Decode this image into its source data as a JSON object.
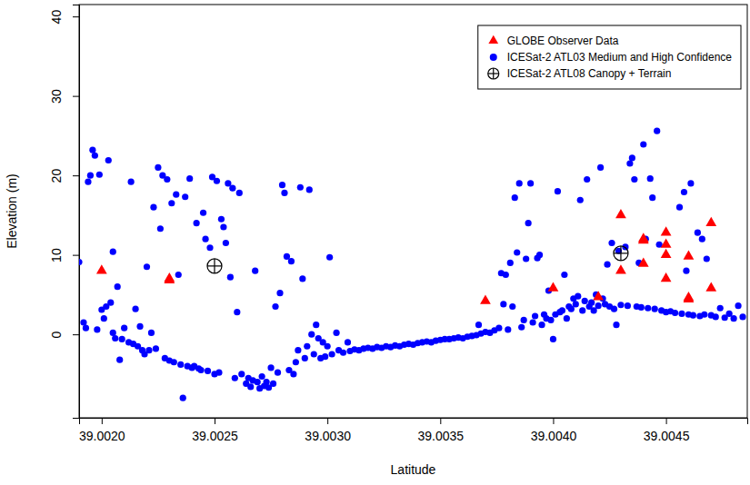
{
  "chart_data": {
    "type": "scatter",
    "x_label": "Latitude",
    "y_label": "Elevation (m)",
    "xlim": [
      39.0019,
      39.00486
    ],
    "ylim": [
      -10.5,
      41.5
    ],
    "xticks": [
      {
        "value": 39.002,
        "label": "39.0020"
      },
      {
        "value": 39.0025,
        "label": "39.0025"
      },
      {
        "value": 39.003,
        "label": "39.0030"
      },
      {
        "value": 39.0035,
        "label": "39.0035"
      },
      {
        "value": 39.004,
        "label": "39.0040"
      },
      {
        "value": 39.0045,
        "label": "39.0045"
      }
    ],
    "yticks": [
      0,
      10,
      20,
      30,
      40
    ],
    "grid": false,
    "legend": "top-right",
    "series": [
      {
        "name": "GLOBE Observer Data",
        "color": "#ff0000",
        "marker": "triangle",
        "x": [
          39.002,
          39.0023,
          39.0023,
          39.0037,
          39.004,
          39.0042,
          39.0043,
          39.0043,
          39.0044,
          39.0044,
          39.0044,
          39.0045,
          39.0045,
          39.0045,
          39.0045,
          39.0046,
          39.0046,
          39.0046,
          39.0047,
          39.0047
        ],
        "values": [
          8.0,
          7.0,
          6.8,
          4.2,
          5.8,
          4.7,
          15.0,
          8.0,
          12.0,
          11.8,
          8.9,
          12.8,
          11.3,
          10.0,
          7.0,
          9.8,
          4.6,
          4.4,
          14.0,
          5.8
        ]
      },
      {
        "name": "ICESat-2 ATL03 Medium and High Confidence",
        "color": "#0000ff",
        "marker": "circle",
        "x": [
          39.0019,
          39.00192,
          39.00193,
          39.00194,
          39.00195,
          39.00196,
          39.00197,
          39.00198,
          39.00199,
          39.002,
          39.00201,
          39.00202,
          39.00203,
          39.00204,
          39.00205,
          39.00205,
          39.00206,
          39.00207,
          39.00208,
          39.00209,
          39.0021,
          39.00212,
          39.00213,
          39.00214,
          39.00215,
          39.00216,
          39.00217,
          39.00218,
          39.00219,
          39.0022,
          39.00221,
          39.00222,
          39.00223,
          39.00224,
          39.00225,
          39.00226,
          39.00227,
          39.00228,
          39.00229,
          39.0023,
          39.00231,
          39.00232,
          39.00233,
          39.00234,
          39.00235,
          39.00236,
          39.00237,
          39.00238,
          39.00239,
          39.0024,
          39.00241,
          39.00242,
          39.00243,
          39.00244,
          39.00245,
          39.00246,
          39.00247,
          39.00248,
          39.00249,
          39.0025,
          39.00251,
          39.00252,
          39.00253,
          39.00254,
          39.00255,
          39.00256,
          39.00257,
          39.00258,
          39.00259,
          39.0026,
          39.00261,
          39.00262,
          39.00264,
          39.00265,
          39.00266,
          39.00267,
          39.00268,
          39.00269,
          39.0027,
          39.00271,
          39.00272,
          39.00273,
          39.00274,
          39.00275,
          39.00276,
          39.00277,
          39.00278,
          39.00279,
          39.0028,
          39.00281,
          39.00282,
          39.00283,
          39.00284,
          39.00285,
          39.00286,
          39.00287,
          39.00288,
          39.00289,
          39.0029,
          39.00291,
          39.00292,
          39.00293,
          39.00294,
          39.00295,
          39.00296,
          39.00297,
          39.00298,
          39.00299,
          39.003,
          39.00301,
          39.00302,
          39.00304,
          39.00305,
          39.00307,
          39.00309,
          39.0031,
          39.00312,
          39.00314,
          39.00316,
          39.00318,
          39.0032,
          39.00322,
          39.00324,
          39.00326,
          39.00328,
          39.0033,
          39.00332,
          39.00334,
          39.00336,
          39.00338,
          39.0034,
          39.00342,
          39.00344,
          39.00346,
          39.00348,
          39.0035,
          39.00352,
          39.00354,
          39.00356,
          39.00358,
          39.0036,
          39.00362,
          39.00364,
          39.00366,
          39.00367,
          39.00368,
          39.0037,
          39.00372,
          39.00374,
          39.00376,
          39.00377,
          39.00378,
          39.00379,
          39.0038,
          39.00381,
          39.00382,
          39.00383,
          39.00384,
          39.00385,
          39.00386,
          39.00387,
          39.00388,
          39.00389,
          39.0039,
          39.00391,
          39.00392,
          39.00393,
          39.00394,
          39.00395,
          39.00396,
          39.00397,
          39.00398,
          39.00399,
          39.004,
          39.00401,
          39.00402,
          39.00403,
          39.00404,
          39.00405,
          39.00406,
          39.00407,
          39.00408,
          39.00409,
          39.0041,
          39.00411,
          39.00412,
          39.00413,
          39.00414,
          39.00415,
          39.00416,
          39.00417,
          39.00418,
          39.00419,
          39.0042,
          39.00421,
          39.00422,
          39.00423,
          39.00424,
          39.00425,
          39.00426,
          39.00427,
          39.00428,
          39.00429,
          39.0043,
          39.00432,
          39.00433,
          39.00434,
          39.00435,
          39.00436,
          39.00437,
          39.00438,
          39.00439,
          39.0044,
          39.00441,
          39.00442,
          39.00443,
          39.00444,
          39.00445,
          39.00446,
          39.00447,
          39.00448,
          39.0045,
          39.00452,
          39.00454,
          39.00456,
          39.00457,
          39.00458,
          39.00459,
          39.0046,
          39.00461,
          39.00462,
          39.00464,
          39.00465,
          39.00466,
          39.00467,
          39.00468,
          39.0047,
          39.00472,
          39.00474,
          39.00476,
          39.00478,
          39.0048,
          39.00482,
          39.00484
        ],
        "values": [
          9.1,
          1.5,
          0.8,
          19.2,
          20.0,
          23.2,
          22.5,
          0.6,
          20.1,
          3.1,
          2.0,
          3.5,
          21.9,
          4.0,
          10.4,
          0.2,
          -0.5,
          6.0,
          -3.2,
          -0.6,
          0.8,
          -1.0,
          19.2,
          -1.2,
          3.2,
          -1.5,
          1.0,
          -2.0,
          -2.5,
          8.5,
          -2.0,
          0.2,
          16.0,
          -1.8,
          21.0,
          13.3,
          20.0,
          -3.0,
          19.5,
          -3.3,
          16.5,
          -3.5,
          17.6,
          7.5,
          -3.8,
          -8.0,
          17.3,
          -4.0,
          19.6,
          -4.2,
          -4.0,
          14.0,
          -4.3,
          -4.5,
          15.3,
          12.0,
          -4.6,
          10.9,
          19.8,
          -5.0,
          19.3,
          -4.8,
          14.5,
          13.5,
          11.5,
          19.0,
          7.2,
          18.4,
          -5.5,
          2.8,
          17.8,
          -5.0,
          -6.2,
          -5.5,
          -6.6,
          -5.8,
          8.0,
          -6.0,
          -6.8,
          -5.3,
          -6.5,
          -6.0,
          -6.7,
          -4.2,
          -6.2,
          3.5,
          -4.8,
          5.2,
          18.8,
          17.8,
          9.8,
          -4.5,
          9.2,
          -5.0,
          -3.5,
          -2.0,
          18.5,
          7.0,
          -3.0,
          -1.5,
          18.2,
          0.0,
          -2.5,
          1.2,
          -0.5,
          -3.0,
          -1.0,
          -2.8,
          -1.5,
          9.7,
          -2.5,
          0.2,
          -2.0,
          -2.3,
          -1.0,
          -2.1,
          -1.9,
          -2.0,
          -1.8,
          -1.7,
          -1.8,
          -1.6,
          -1.7,
          -1.5,
          -1.6,
          -1.4,
          -1.5,
          -1.3,
          -1.2,
          -1.3,
          -1.1,
          -1.0,
          -0.9,
          -1.0,
          -0.8,
          -0.7,
          -0.6,
          -0.6,
          -0.5,
          -0.4,
          -0.5,
          -0.3,
          -0.2,
          -0.1,
          1.2,
          0.1,
          0.3,
          0.2,
          0.5,
          0.8,
          7.7,
          3.8,
          7.5,
          0.6,
          9.0,
          3.5,
          17.2,
          10.3,
          19.0,
          0.9,
          1.8,
          9.5,
          14.0,
          19.0,
          1.5,
          2.3,
          9.6,
          10.0,
          1.2,
          2.5,
          2.0,
          5.5,
          1.8,
          -0.6,
          2.5,
          18.0,
          2.8,
          3.0,
          7.5,
          2.0,
          3.5,
          3.2,
          4.5,
          3.8,
          4.8,
          16.9,
          3.0,
          4.2,
          19.5,
          3.5,
          4.0,
          3.0,
          5.0,
          3.6,
          21.0,
          4.5,
          3.8,
          8.8,
          3.5,
          11.5,
          3.2,
          1.2,
          10.5,
          3.7,
          11.0,
          3.6,
          21.5,
          22.2,
          19.5,
          3.5,
          9.0,
          3.4,
          23.9,
          12.0,
          3.3,
          19.6,
          17.2,
          3.2,
          25.6,
          11.3,
          3.0,
          2.8,
          2.9,
          2.7,
          16.0,
          2.6,
          17.9,
          8.0,
          2.5,
          19.0,
          2.4,
          12.8,
          2.3,
          12.0,
          2.5,
          9.5,
          2.4,
          2.2,
          3.3,
          2.1,
          2.6,
          2.0,
          3.6,
          2.2
        ]
      },
      {
        "name": "ICESat-2 ATL08 Canopy + Terrain",
        "color": "#000000",
        "marker": "circle-cross",
        "x": [
          39.0025,
          39.0043
        ],
        "values": [
          8.6,
          10.2
        ]
      }
    ]
  }
}
